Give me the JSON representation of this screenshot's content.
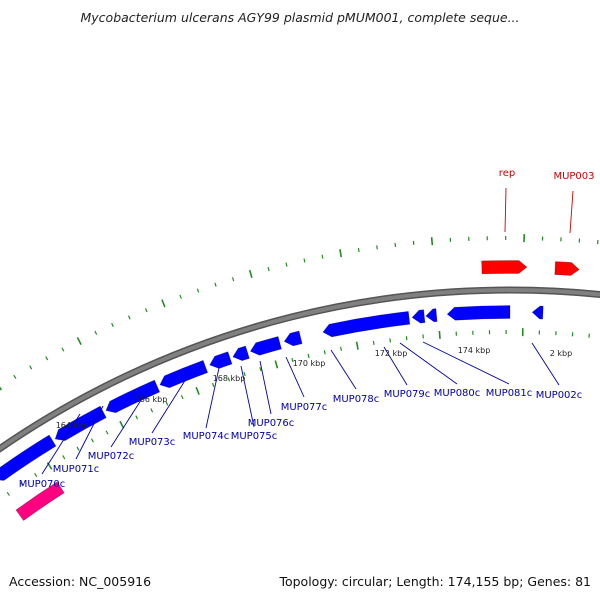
{
  "title": "Mycobacterium ulcerans AGY99 plasmid pMUM001, complete seque...",
  "footer": {
    "accession": "Accession: NC_005916",
    "summary": "Topology: circular; Length: 174,155 bp; Genes: 81"
  },
  "colors": {
    "forward_gene": "#ff0000",
    "reverse_gene": "#0000ff",
    "other_feature": "#ff0080",
    "backbone": "#808080",
    "ticks": "#228b22",
    "forward_label": "#cc0000",
    "reverse_label": "#0000aa"
  },
  "genes": [
    {
      "name": "rep",
      "strand": "forward"
    },
    {
      "name": "MUP003",
      "strand": "forward"
    },
    {
      "name": "MUP070c",
      "strand": "reverse"
    },
    {
      "name": "MUP071c",
      "strand": "reverse"
    },
    {
      "name": "MUP072c",
      "strand": "reverse"
    },
    {
      "name": "MUP073c",
      "strand": "reverse"
    },
    {
      "name": "MUP074c",
      "strand": "reverse"
    },
    {
      "name": "MUP075c",
      "strand": "reverse"
    },
    {
      "name": "MUP076c",
      "strand": "reverse"
    },
    {
      "name": "MUP077c",
      "strand": "reverse"
    },
    {
      "name": "MUP078c",
      "strand": "reverse"
    },
    {
      "name": "MUP079c",
      "strand": "reverse"
    },
    {
      "name": "MUP080c",
      "strand": "reverse"
    },
    {
      "name": "MUP081c",
      "strand": "reverse"
    },
    {
      "name": "MUP002c",
      "strand": "reverse"
    }
  ],
  "scale_labels": [
    "164 kbp",
    "166 kbp",
    "168 kbp",
    "170 kbp",
    "172 kbp",
    "174 kbp",
    "2 kbp"
  ]
}
